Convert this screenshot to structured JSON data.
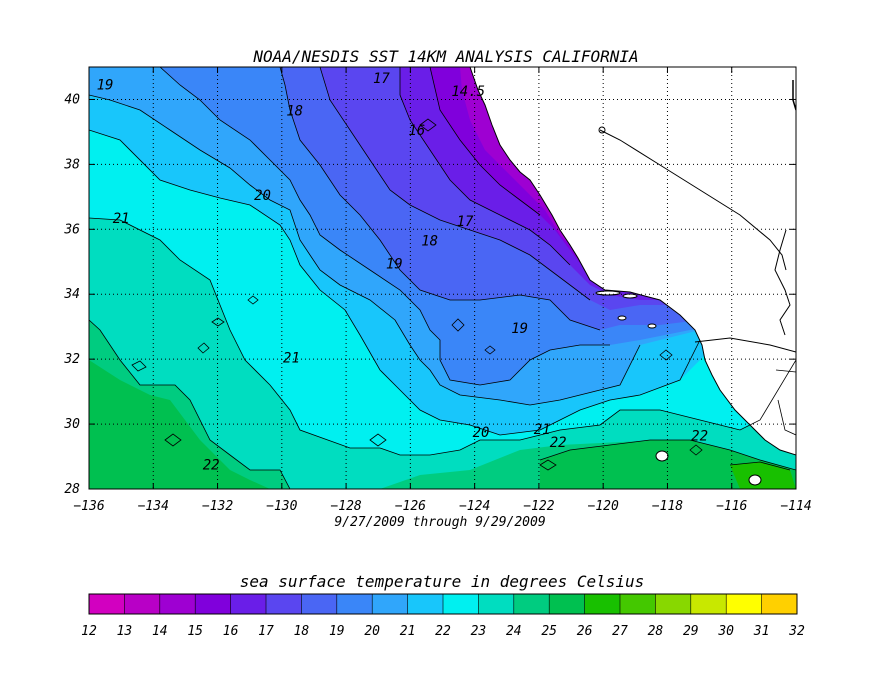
{
  "title": "NOAA/NESDIS SST 14KM ANALYSIS CALIFORNIA",
  "date_range": "9/27/2009 through 9/29/2009",
  "colorbar_title": "sea surface temperature in degrees Celsius",
  "x_ticks": [
    "−136",
    "−134",
    "−132",
    "−130",
    "−128",
    "−126",
    "−124",
    "−122",
    "−120",
    "−118",
    "−116",
    "−114"
  ],
  "y_ticks": [
    "28",
    "30",
    "32",
    "34",
    "36",
    "38",
    "40"
  ],
  "colorbar_labels": [
    "12",
    "13",
    "14",
    "15",
    "16",
    "17",
    "18",
    "19",
    "20",
    "21",
    "22",
    "23",
    "24",
    "25",
    "26",
    "27",
    "28",
    "29",
    "30",
    "31",
    "32"
  ],
  "contour_labels": [
    "19",
    "17",
    "14.5",
    "16",
    "18",
    "21",
    "20",
    "17",
    "18",
    "19",
    "19",
    "21",
    "20",
    "21",
    "22",
    "22",
    "22"
  ],
  "chart_data": {
    "type": "heatmap",
    "title": "NOAA/NESDIS SST 14KM ANALYSIS CALIFORNIA",
    "subtitle": "9/27/2009 through 9/29/2009",
    "xlim": [
      -136,
      -114
    ],
    "ylim": [
      28,
      41
    ],
    "x_ticks": [
      -136,
      -134,
      -132,
      -130,
      -128,
      -126,
      -124,
      -122,
      -120,
      -118,
      -116,
      -114
    ],
    "y_ticks": [
      28,
      30,
      32,
      34,
      36,
      38,
      40
    ],
    "grid": "dotted",
    "colorbar": {
      "title": "sea surface temperature in degrees Celsius",
      "min": 12,
      "max": 32,
      "step": 1,
      "colors": [
        "#d200c0",
        "#b800c6",
        "#9e00d2",
        "#8000dc",
        "#6a1ee8",
        "#5a46f0",
        "#4a66f4",
        "#3a86f8",
        "#30a6fb",
        "#18c6fb",
        "#00f0f0",
        "#00ddc0",
        "#00cc80",
        "#00c050",
        "#18c000",
        "#44c800",
        "#88d800",
        "#c8e800",
        "#ffff00",
        "#ffd000",
        "#ffa800",
        "#ff8800",
        "#ff6a00"
      ]
    },
    "contour_labels": [
      {
        "value": 19,
        "lon": -135.5,
        "lat": 40.3
      },
      {
        "value": 17,
        "lon": -126.9,
        "lat": 40.5
      },
      {
        "value": 14.5,
        "lon": -124.2,
        "lat": 40.1
      },
      {
        "value": 16,
        "lon": -125.8,
        "lat": 38.9
      },
      {
        "value": 18,
        "lon": -129.6,
        "lat": 39.5
      },
      {
        "value": 21,
        "lon": -135.0,
        "lat": 36.2
      },
      {
        "value": 20,
        "lon": -130.6,
        "lat": 36.9
      },
      {
        "value": 17,
        "lon": -124.3,
        "lat": 36.1
      },
      {
        "value": 18,
        "lon": -125.4,
        "lat": 35.5
      },
      {
        "value": 19,
        "lon": -126.5,
        "lat": 34.8
      },
      {
        "value": 19,
        "lon": -122.6,
        "lat": 32.8
      },
      {
        "value": 21,
        "lon": -129.7,
        "lat": 31.9
      },
      {
        "value": 20,
        "lon": -123.8,
        "lat": 29.6
      },
      {
        "value": 21,
        "lon": -121.9,
        "lat": 29.7
      },
      {
        "value": 22,
        "lon": -121.4,
        "lat": 29.3
      },
      {
        "value": 22,
        "lon": -132.2,
        "lat": 28.6
      },
      {
        "value": 22,
        "lon": -117.0,
        "lat": 29.5
      }
    ]
  }
}
